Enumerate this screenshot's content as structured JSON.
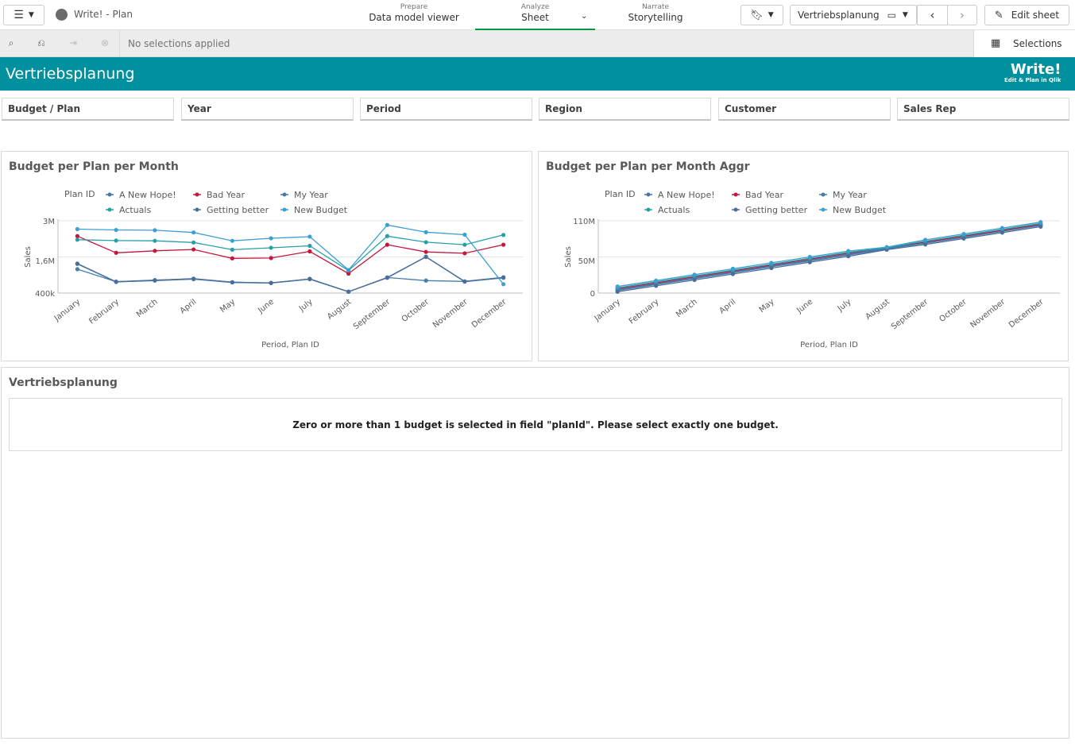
{
  "topbar": {
    "app_title": "Write! - Plan",
    "tabs": [
      {
        "small": "Prepare",
        "label": "Data model viewer"
      },
      {
        "small": "Analyze",
        "label": "Sheet"
      },
      {
        "small": "Narrate",
        "label": "Storytelling"
      }
    ],
    "sheet_select": "Vertriebsplanung",
    "edit_label": "Edit sheet"
  },
  "selection_bar": {
    "status": "No selections applied",
    "selections_label": "Selections"
  },
  "sheet": {
    "title": "Vertriebsplanung",
    "logo_main": "Write!",
    "logo_sub": "Edit & Plan in Qlik"
  },
  "filters": [
    "Budget / Plan",
    "Year",
    "Period",
    "Region",
    "Customer",
    "Sales Rep"
  ],
  "colors": {
    "A New Hope!": "#4477aa",
    "Actuals": "#26a0a7",
    "Bad Year": "#c5163c",
    "Getting better": "#4b6e99",
    "My Year": "#457cab",
    "New Budget": "#3c9fd3"
  },
  "chart_data": [
    {
      "type": "line",
      "title": "Budget per Plan per Month",
      "xlabel": "Period, Plan ID",
      "ylabel": "Sales",
      "legend_title": "Plan ID",
      "legend_position": "top-left",
      "y_ticks": [
        "3M",
        "1,6M",
        "400k"
      ],
      "ylim": [
        400000,
        3000000
      ],
      "grid": true,
      "categories": [
        "January",
        "February",
        "March",
        "April",
        "May",
        "June",
        "July",
        "August",
        "September",
        "October",
        "November",
        "December"
      ],
      "series": [
        {
          "name": "A New Hope!",
          "values": [
            1450000,
            800000,
            850000,
            900000,
            780000,
            760000,
            900000,
            450000,
            950000,
            1700000,
            810000,
            950000
          ]
        },
        {
          "name": "Bad Year",
          "values": [
            2450000,
            1850000,
            1920000,
            1970000,
            1650000,
            1660000,
            1900000,
            1100000,
            2140000,
            1880000,
            1830000,
            2140000
          ]
        },
        {
          "name": "My Year",
          "values": [
            1260000,
            810000,
            870000,
            910000,
            790000,
            760000,
            910000,
            450000,
            960000,
            850000,
            820000,
            960000
          ]
        },
        {
          "name": "Actuals",
          "values": [
            2320000,
            2290000,
            2280000,
            2220000,
            1960000,
            2030000,
            2100000,
            1210000,
            2450000,
            2230000,
            2140000,
            2490000
          ]
        },
        {
          "name": "Getting better",
          "values": [
            1460000,
            810000,
            860000,
            920000,
            790000,
            770000,
            910000,
            450000,
            960000,
            1710000,
            820000,
            970000
          ]
        },
        {
          "name": "New Budget",
          "values": [
            2700000,
            2670000,
            2660000,
            2580000,
            2280000,
            2370000,
            2430000,
            1230000,
            2850000,
            2590000,
            2500000,
            720000
          ]
        }
      ]
    },
    {
      "type": "line",
      "title": "Budget per Plan per Month Aggr",
      "xlabel": "Period, Plan ID",
      "ylabel": "Sales",
      "legend_title": "Plan ID",
      "legend_position": "top-left",
      "y_ticks": [
        "110M",
        "50M",
        "0"
      ],
      "ylim": [
        0,
        110000000
      ],
      "grid": true,
      "categories": [
        "January",
        "February",
        "March",
        "April",
        "May",
        "June",
        "July",
        "August",
        "September",
        "October",
        "November",
        "December"
      ],
      "series": [
        {
          "name": "A New Hope!",
          "values": [
            4000000,
            13000000,
            22000000,
            31000000,
            40000000,
            49000000,
            58000000,
            67000000,
            76000000,
            85000000,
            94000000,
            103000000
          ]
        },
        {
          "name": "Bad Year",
          "values": [
            6500000,
            15500000,
            24500000,
            33500000,
            42500000,
            51500000,
            60500000,
            68500000,
            77500000,
            86500000,
            95500000,
            104500000
          ]
        },
        {
          "name": "My Year",
          "values": [
            5000000,
            14000000,
            23000000,
            32000000,
            41000000,
            50000000,
            59000000,
            68000000,
            76000000,
            85000000,
            94000000,
            103000000
          ]
        },
        {
          "name": "Actuals",
          "values": [
            8000000,
            17000000,
            26000000,
            35000000,
            44000000,
            53000000,
            62000000,
            69000000,
            79000000,
            88000000,
            97000000,
            106000000
          ]
        },
        {
          "name": "Getting better",
          "values": [
            2000000,
            11000000,
            20000000,
            29000000,
            38000000,
            47000000,
            56000000,
            66000000,
            74000000,
            83000000,
            92000000,
            101000000
          ]
        },
        {
          "name": "New Budget",
          "values": [
            10000000,
            19000000,
            28000000,
            37000000,
            46000000,
            55000000,
            64000000,
            70000000,
            81000000,
            90000000,
            99000000,
            108000000
          ]
        }
      ]
    }
  ],
  "table_panel": {
    "title": "Vertriebsplanung",
    "message": "Zero or more than 1 budget is selected in field \"planId\". Please select exactly one budget."
  }
}
